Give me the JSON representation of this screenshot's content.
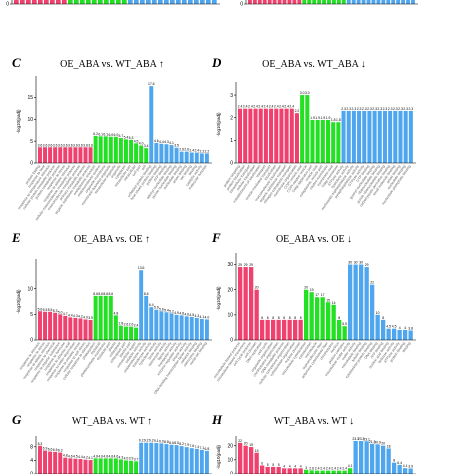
{
  "colors": {
    "red": "#f0406e",
    "green": "#22e022",
    "blue": "#4ea6ee",
    "axis": "#000000"
  },
  "chart_data": [
    {
      "type": "bar",
      "panel": "top-left",
      "letter": "",
      "title": "",
      "ylabel": "",
      "ylim": [
        0,
        8
      ],
      "yticks": [
        "0"
      ],
      "groups": [
        {
          "color": "red",
          "values": [
            8,
            8,
            8,
            8,
            8,
            8,
            8,
            8,
            8
          ]
        },
        {
          "color": "green",
          "values": [
            8,
            8,
            8,
            8,
            8,
            8,
            8,
            8,
            8,
            8
          ]
        },
        {
          "color": "blue",
          "values": [
            8,
            8,
            8,
            8,
            8,
            8,
            8,
            8,
            8,
            8,
            8,
            8,
            8,
            8,
            8
          ]
        }
      ],
      "categories": [
        "",
        "",
        "",
        "",
        "",
        "",
        "",
        "",
        "",
        "",
        "",
        "",
        "",
        "",
        "",
        "",
        "",
        "",
        "",
        "",
        "",
        "",
        "",
        "",
        "",
        "",
        "",
        "",
        "",
        "",
        "",
        "",
        "",
        ""
      ]
    },
    {
      "type": "bar",
      "panel": "top-right",
      "letter": "",
      "title": "",
      "ylabel": "",
      "ylim": [
        0,
        8
      ],
      "yticks": [
        "0"
      ],
      "groups": [
        {
          "color": "red",
          "values": [
            8,
            8,
            8,
            8,
            8,
            8,
            8,
            8,
            8,
            8,
            8
          ]
        },
        {
          "color": "green",
          "values": [
            8,
            8,
            8,
            8,
            8,
            8,
            8,
            8,
            8
          ]
        },
        {
          "color": "blue",
          "values": [
            8,
            8,
            8,
            8,
            8,
            8,
            8,
            8,
            8,
            8,
            8,
            8,
            8,
            8
          ]
        }
      ],
      "categories": [
        "",
        "",
        "",
        "",
        "",
        "",
        "",
        "",
        "",
        "",
        "",
        "",
        "",
        "",
        "",
        "",
        "",
        "",
        "",
        "",
        "",
        "",
        "",
        "",
        "",
        "",
        "",
        "",
        "",
        "",
        "",
        "",
        "",
        ""
      ]
    },
    {
      "type": "bar",
      "panel": "C",
      "letter": "C",
      "title": "OE_ABA vs. WT_ABA ↑",
      "ylabel": "-log10(padj)",
      "ylim": [
        0,
        19
      ],
      "yticks": [
        "0",
        "5",
        "10",
        "15"
      ],
      "groups": [
        {
          "color": "red",
          "values": [
            3.6,
            3.6,
            3.6,
            3.6,
            3.6,
            3.6,
            3.6,
            3.6,
            3.6,
            3.6,
            3.6
          ]
        },
        {
          "color": "green",
          "values": [
            6.2,
            6.1,
            6.1,
            6.0,
            6.0,
            5.7,
            5.4,
            5.3,
            4.5,
            4.0,
            3.4
          ]
        },
        {
          "color": "blue",
          "values": [
            17.6,
            4.6,
            4.4,
            4.3,
            4.1,
            3.5,
            2.6,
            2.6,
            2.4,
            2.4,
            2.2,
            2.2
          ]
        }
      ],
      "labels": [
        "3.6",
        "3.6",
        "3.6",
        "3.6",
        "3.6",
        "3.6",
        "3.6",
        "3.6",
        "3.6",
        "3.6",
        "3.6",
        "6.2",
        "6.1",
        "6.1",
        "6.0",
        "6.0",
        "5.7",
        "5.4",
        "5.3",
        "4.5",
        "4.0",
        "3.4",
        "17.6",
        "4.6",
        "4.4",
        "4.3",
        "4.1",
        "3.5",
        "2.6",
        "2.6",
        "2.4",
        "2.4",
        "2.2",
        "2.2"
      ],
      "categories": [
        "protein folding",
        "response to heat",
        "response to temperature stimulus",
        "cellular protein metabolic process",
        "protein metabolic process",
        "response to stress",
        "response to abiotic stimulus",
        "cellular macromolecule metabolic process",
        "macromolecule metabolic process",
        "primary metabolic process",
        "organic substance metabolic process",
        "endoplasmic reticulum",
        "endomembrane system",
        "organelle membrane",
        "membrane-bounded organelle",
        "intracellular organelle",
        "organelle",
        "cytoplasm",
        "intracellular part",
        "intracellular",
        "cell part",
        "cell",
        "unfolded protein binding",
        "heat shock protein binding",
        "protein binding",
        "ATP binding",
        "adenyl nucleotide binding",
        "purine nucleotide binding",
        "nucleotide binding",
        "anion binding",
        "ion binding",
        "binding",
        "catalytic activity",
        "molecular function"
      ]
    },
    {
      "type": "bar",
      "panel": "D",
      "letter": "D",
      "title": "OE_ABA vs. WT_ABA ↓",
      "ylabel": "-log10(padj)",
      "ylim": [
        0,
        3.4
      ],
      "yticks": [
        "0",
        "1",
        "2",
        "3"
      ],
      "groups": [
        {
          "color": "red",
          "values": [
            2.4,
            2.4,
            2.4,
            2.4,
            2.4,
            2.4,
            2.4,
            2.4,
            2.4,
            2.4,
            2.4,
            2.2
          ]
        },
        {
          "color": "green",
          "values": [
            3.0,
            3.0,
            1.9,
            1.9,
            1.9,
            1.9,
            1.8,
            1.8
          ]
        },
        {
          "color": "blue",
          "values": [
            2.3,
            2.3,
            2.3,
            2.3,
            2.3,
            2.3,
            2.3,
            2.3,
            2.3,
            2.3,
            2.3,
            2.3,
            2.3,
            2.3
          ]
        }
      ],
      "labels": [
        "2.4",
        "2.4",
        "2.4",
        "2.4",
        "2.4",
        "2.4",
        "2.4",
        "2.4",
        "2.4",
        "2.4",
        "2.4",
        "2.2",
        "3.0",
        "3.0",
        "1.9",
        "1.9",
        "1.9",
        "1.9",
        "1.8",
        "1.8",
        "2.3",
        "2.3",
        "2.3",
        "2.3",
        "2.3",
        "2.3",
        "2.3",
        "2.3",
        "2.3",
        "2.3",
        "2.3",
        "2.3",
        "2.3",
        "2.3"
      ],
      "categories": [
        "protein targeting",
        "protein localization",
        "intracellular transport",
        "cellular localization",
        "establishment of localization",
        "transport",
        "vesicle-mediated transport",
        "localization",
        "macromolecule localization",
        "organic substance transport",
        "nitrogen compound transport",
        "membrane organization",
        "COPI vesicle coat",
        "COPI-coated vesicle",
        "Golgi apparatus part",
        "vesicle coat",
        "cytoplasmic vesicle part",
        "coated membrane",
        "membrane coat",
        "Golgi membrane",
        "ATPase activity",
        "hydrolase activity",
        "nucleoside-triphosphatase activity",
        "pyrophosphatase activity",
        "GTPase activity",
        "GTP binding",
        "guanyl nucleotide binding",
        "ribonucleotide binding",
        "purine ribonucleotide binding",
        "carbohydrate derivative binding",
        "small molecule binding",
        "anion binding",
        "nucleotide binding",
        "nucleoside phosphate binding"
      ]
    },
    {
      "type": "bar",
      "panel": "E",
      "letter": "E",
      "title": "OE_ABA vs. OE ↑",
      "ylabel": "-log10(padj)",
      "ylim": [
        0,
        15
      ],
      "yticks": [
        "0",
        "5",
        "10"
      ],
      "groups": [
        {
          "color": "red",
          "values": [
            5.6,
            5.5,
            5.5,
            5.3,
            5.0,
            4.7,
            4.4,
            4.3,
            4.2,
            4.0,
            3.9
          ]
        },
        {
          "color": "green",
          "values": [
            8.6,
            8.6,
            8.6,
            8.6,
            4.8,
            2.8,
            2.6,
            2.6,
            2.4
          ]
        },
        {
          "color": "blue",
          "values": [
            13.6,
            8.6,
            6.4,
            5.9,
            5.6,
            5.4,
            5.2,
            4.9,
            4.8,
            4.6,
            4.5,
            4.3,
            4.1,
            4.0
          ]
        }
      ],
      "labels": [
        "5.6",
        "5.5",
        "5.5",
        "5.3",
        "5.0",
        "4.7",
        "4.4",
        "4.3",
        "4.2",
        "4.0",
        "3.9",
        "8.6",
        "8.6",
        "8.6",
        "8.6",
        "4.8",
        "2.8",
        "2.6",
        "2.6",
        "2.4",
        "13.6",
        "8.6",
        "6.4",
        "5.9",
        "5.6",
        "5.4",
        "5.2",
        "4.9",
        "4.8",
        "4.6",
        "4.5",
        "4.3",
        "4.1",
        "4.0"
      ],
      "categories": [
        "response to stimulus",
        "response to stress",
        "response to abiotic stimulus",
        "response to chemical",
        "response to organic substance",
        "response to hormone",
        "response to abscisic acid",
        "response to water deprivation",
        "response to osmotic stress",
        "response to salt stress",
        "cellular response to stimulus",
        "photosystem",
        "thylakoid",
        "photosynthetic membrane",
        "thylakoid part",
        "plastid",
        "chloroplast",
        "chloroplast part",
        "plastid part",
        "extracellular region",
        "catalytic activity",
        "oxidoreductase activity",
        "transferase activity",
        "hydrolase activity",
        "lyase activity",
        "isomerase activity",
        "ligase activity",
        "transporter activity",
        "enzyme regulator activity",
        "kinase activity",
        "DNA-binding transcription factor activity",
        "cofactor binding",
        "coenzyme binding",
        "metal ion binding"
      ]
    },
    {
      "type": "bar",
      "panel": "F",
      "letter": "F",
      "title": "OE_ABA vs. OE ↓",
      "ylabel": "-log10(padj)",
      "ylim": [
        0,
        33
      ],
      "yticks": [
        "0",
        "10",
        "20",
        "30"
      ],
      "groups": [
        {
          "color": "red",
          "values": [
            29,
            29,
            29,
            20,
            8,
            8,
            8,
            8,
            8,
            8,
            8,
            8
          ]
        },
        {
          "color": "green",
          "values": [
            20,
            19,
            17,
            17,
            15,
            14,
            8,
            5.5
          ]
        },
        {
          "color": "blue",
          "values": [
            30,
            30,
            30,
            29,
            22,
            10,
            8,
            4.5,
            4.5,
            4,
            4,
            3.8
          ]
        }
      ],
      "labels": [
        "29",
        "29",
        "29",
        "20",
        "8",
        "8",
        "8",
        "8",
        "8",
        "8",
        "8",
        "8",
        "20",
        "19",
        "17",
        "17",
        "15",
        "14",
        "8",
        "5.5",
        "30",
        "30",
        "30",
        "29",
        "22",
        "10",
        "8",
        "4.5",
        "4.5",
        "4",
        "4",
        "3.8"
      ],
      "categories": [
        "microtubule-based process",
        "microtubule-based movement",
        "cell cycle process",
        "cell division",
        "DNA replication",
        "cell cycle",
        "organelle organization",
        "chromosome organization",
        "DNA metabolic process",
        "cellular component organization",
        "cytoskeleton organization",
        "nuclear division",
        "microtubule cytoskeleton",
        "cytoskeleton",
        "microtubule",
        "supramolecular fiber",
        "polymeric cytoskeletal fiber",
        "chromosome",
        "nucleus",
        "protein complex",
        "microtubule motor activity",
        "motor activity",
        "microtubule binding",
        "tubulin binding",
        "cytoskeletal protein binding",
        "DNA binding",
        "ATP binding",
        "nucleic acid binding",
        "helicase activity",
        "ATPase activity",
        "protein binding",
        "binding"
      ]
    },
    {
      "type": "bar",
      "panel": "G",
      "letter": "G",
      "title": "WT_ABA vs. WT ↑",
      "ylabel": "",
      "ylim": [
        0,
        10
      ],
      "yticks": [
        "0",
        "4",
        "8"
      ],
      "groups": [
        {
          "color": "red",
          "values": [
            8.3,
            6.9,
            6.6,
            6.5,
            6.3,
            4.8,
            4.6,
            4.5,
            4.4,
            4.2,
            4.1
          ]
        },
        {
          "color": "green",
          "values": [
            4.6,
            4.6,
            4.6,
            4.6,
            4.6,
            4.3,
            4.0,
            3.9,
            3.7
          ]
        },
        {
          "color": "blue",
          "values": [
            9.2,
            9.2,
            9.2,
            9.1,
            9.0,
            8.8,
            8.6,
            8.5,
            8.2,
            7.9,
            7.6,
            7.4,
            7.1,
            6.8
          ]
        }
      ],
      "labels": [
        "8.3",
        "6.9",
        "6.6",
        "6.5",
        "6.3",
        "4.8",
        "4.6",
        "4.5",
        "4.4",
        "4.2",
        "4.1",
        "4.6",
        "4.6",
        "4.6",
        "4.6",
        "4.6",
        "4.3",
        "4.0",
        "3.9",
        "3.7",
        "9.2",
        "9.2",
        "9.2",
        "9.1",
        "9.0",
        "8.8",
        "8.6",
        "8.5",
        "8.2",
        "7.9",
        "7.6",
        "7.4",
        "7.1",
        "6.8"
      ],
      "categories": [
        "",
        "",
        "",
        "",
        "",
        "",
        "",
        "",
        "",
        "",
        "",
        "",
        "",
        "",
        "",
        "",
        "",
        "",
        "",
        "",
        "",
        "",
        "",
        "",
        "",
        "",
        "",
        "",
        "",
        "",
        "",
        "",
        "",
        ""
      ]
    },
    {
      "type": "bar",
      "panel": "H",
      "letter": "H",
      "title": "WT_ABA vs. WT ↓",
      "ylabel": "-log10(padj)",
      "ylim": [
        0,
        24
      ],
      "yticks": [
        "0",
        "10",
        "20"
      ],
      "groups": [
        {
          "color": "red",
          "values": [
            22,
            20,
            19,
            15,
            6,
            5,
            5,
            5,
            4,
            4,
            4,
            4
          ]
        },
        {
          "color": "green",
          "values": [
            3,
            2.6,
            2.4,
            2.4,
            2.4,
            2.4,
            2.4,
            2.4,
            4.1
          ]
        },
        {
          "color": "blue",
          "values": [
            23.3,
            23.3,
            23.1,
            21.3,
            20.9,
            20,
            18,
            8,
            6.4,
            4.1,
            3.9
          ]
        }
      ],
      "labels": [
        "22",
        "20",
        "19",
        "15",
        "6",
        "5",
        "5",
        "5",
        "4",
        "4",
        "4",
        "4",
        "3",
        "2.6",
        "2.4",
        "2.4",
        "2.4",
        "2.4",
        "2.4",
        "2.4",
        "4.1",
        "23.3",
        "23.3",
        "23.1",
        "21.3",
        "20.9",
        "20",
        "18",
        "8",
        "6.4",
        "4.1",
        "3.9"
      ],
      "categories": [
        "",
        "",
        "",
        "",
        "",
        "",
        "",
        "",
        "",
        "",
        "",
        "",
        "",
        "",
        "",
        "",
        "",
        "",
        "",
        "",
        "",
        "",
        "",
        "",
        "",
        "",
        "",
        "",
        "",
        "",
        "",
        "",
        ""
      ]
    }
  ]
}
